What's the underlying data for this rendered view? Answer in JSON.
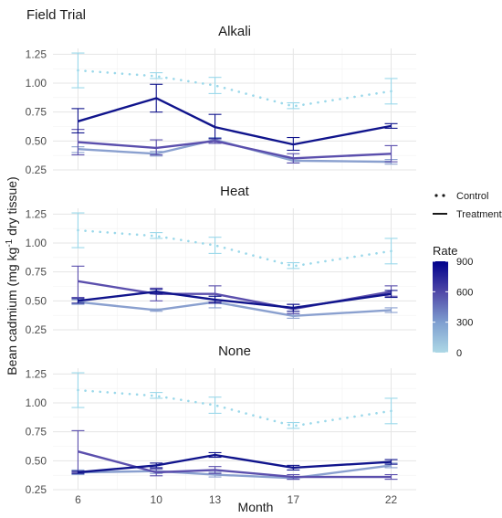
{
  "chart_data": {
    "type": "line",
    "title": "Field Trial",
    "xlabel": "Month",
    "ylabel_parts": {
      "before": "Bean cadmium (mg kg",
      "superscript": "-1",
      "after": " dry tissue)"
    },
    "x": [
      6,
      10,
      13,
      17,
      22
    ],
    "ylim": [
      0.25,
      1.3
    ],
    "yticks": [
      0.25,
      0.5,
      0.75,
      1.0,
      1.25
    ],
    "ytick_labels": [
      "0.25",
      "0.50",
      "0.75",
      "1.00",
      "1.25"
    ],
    "grid": true,
    "legend": {
      "linetype_entries": [
        "Control",
        "Treatment"
      ],
      "color_title": "Rate",
      "color_ticks": [
        "900",
        "600",
        "300",
        "0"
      ],
      "color_tick_values": [
        900,
        600,
        300,
        0
      ],
      "color_low": "#add8e6",
      "color_high": "#00008b",
      "placement": "right"
    },
    "panels": [
      {
        "name": "Alkali",
        "series": [
          {
            "rate": 0,
            "linetype": "Control",
            "color": "#9ad8ea",
            "values": [
              1.11,
              1.06,
              0.98,
              0.8,
              0.93
            ],
            "err_lo": [
              0.96,
              1.04,
              0.91,
              0.78,
              0.82
            ],
            "err_hi": [
              1.26,
              1.09,
              1.05,
              0.83,
              1.04
            ]
          },
          {
            "rate": 300,
            "linetype": "Treatment",
            "color": "#8aa0cf",
            "values": [
              0.43,
              0.39,
              0.51,
              0.33,
              0.32
            ],
            "err_lo": [
              0.4,
              0.37,
              0.48,
              0.31,
              0.3
            ],
            "err_hi": [
              0.45,
              0.41,
              0.53,
              0.35,
              0.34
            ]
          },
          {
            "rate": 600,
            "linetype": "Treatment",
            "color": "#5b4fad",
            "values": [
              0.49,
              0.44,
              0.5,
              0.35,
              0.39
            ],
            "err_lo": [
              0.38,
              0.38,
              0.48,
              0.31,
              0.32
            ],
            "err_hi": [
              0.6,
              0.51,
              0.52,
              0.39,
              0.46
            ]
          },
          {
            "rate": 900,
            "linetype": "Treatment",
            "color": "#10148c",
            "values": [
              0.67,
              0.87,
              0.62,
              0.47,
              0.63
            ],
            "err_lo": [
              0.57,
              0.75,
              0.52,
              0.42,
              0.61
            ],
            "err_hi": [
              0.78,
              0.99,
              0.73,
              0.53,
              0.65
            ]
          }
        ]
      },
      {
        "name": "Heat",
        "series": [
          {
            "rate": 0,
            "linetype": "Control",
            "color": "#9ad8ea",
            "values": [
              1.11,
              1.06,
              0.98,
              0.8,
              0.93
            ],
            "err_lo": [
              0.96,
              1.04,
              0.91,
              0.78,
              0.82
            ],
            "err_hi": [
              1.26,
              1.09,
              1.05,
              0.83,
              1.04
            ]
          },
          {
            "rate": 300,
            "linetype": "Treatment",
            "color": "#8aa0cf",
            "values": [
              0.49,
              0.42,
              0.49,
              0.37,
              0.42
            ],
            "err_lo": [
              0.47,
              0.41,
              0.44,
              0.35,
              0.4
            ],
            "err_hi": [
              0.51,
              0.43,
              0.54,
              0.39,
              0.44
            ]
          },
          {
            "rate": 600,
            "linetype": "Treatment",
            "color": "#5b4fad",
            "values": [
              0.67,
              0.56,
              0.56,
              0.43,
              0.58
            ],
            "err_lo": [
              0.53,
              0.5,
              0.49,
              0.39,
              0.54
            ],
            "err_hi": [
              0.8,
              0.61,
              0.63,
              0.47,
              0.63
            ]
          },
          {
            "rate": 900,
            "linetype": "Treatment",
            "color": "#10148c",
            "values": [
              0.5,
              0.58,
              0.51,
              0.44,
              0.56
            ],
            "err_lo": [
              0.48,
              0.56,
              0.48,
              0.41,
              0.53
            ],
            "err_hi": [
              0.52,
              0.6,
              0.54,
              0.47,
              0.59
            ]
          }
        ]
      },
      {
        "name": "None",
        "series": [
          {
            "rate": 0,
            "linetype": "Control",
            "color": "#9ad8ea",
            "values": [
              1.11,
              1.06,
              0.98,
              0.8,
              0.93
            ],
            "err_lo": [
              0.96,
              1.04,
              0.91,
              0.78,
              0.82
            ],
            "err_hi": [
              1.26,
              1.09,
              1.05,
              0.83,
              1.04
            ]
          },
          {
            "rate": 300,
            "linetype": "Treatment",
            "color": "#8aa0cf",
            "values": [
              0.4,
              0.41,
              0.38,
              0.35,
              0.46
            ],
            "err_lo": [
              0.38,
              0.39,
              0.36,
              0.34,
              0.44
            ],
            "err_hi": [
              0.42,
              0.43,
              0.4,
              0.36,
              0.48
            ]
          },
          {
            "rate": 600,
            "linetype": "Treatment",
            "color": "#5b4fad",
            "values": [
              0.58,
              0.4,
              0.42,
              0.36,
              0.36
            ],
            "err_lo": [
              0.4,
              0.37,
              0.39,
              0.34,
              0.34
            ],
            "err_hi": [
              0.76,
              0.43,
              0.45,
              0.38,
              0.38
            ]
          },
          {
            "rate": 900,
            "linetype": "Treatment",
            "color": "#10148c",
            "values": [
              0.4,
              0.46,
              0.55,
              0.44,
              0.49
            ],
            "err_lo": [
              0.39,
              0.44,
              0.53,
              0.42,
              0.47
            ],
            "err_hi": [
              0.41,
              0.48,
              0.57,
              0.46,
              0.51
            ]
          }
        ]
      }
    ]
  }
}
